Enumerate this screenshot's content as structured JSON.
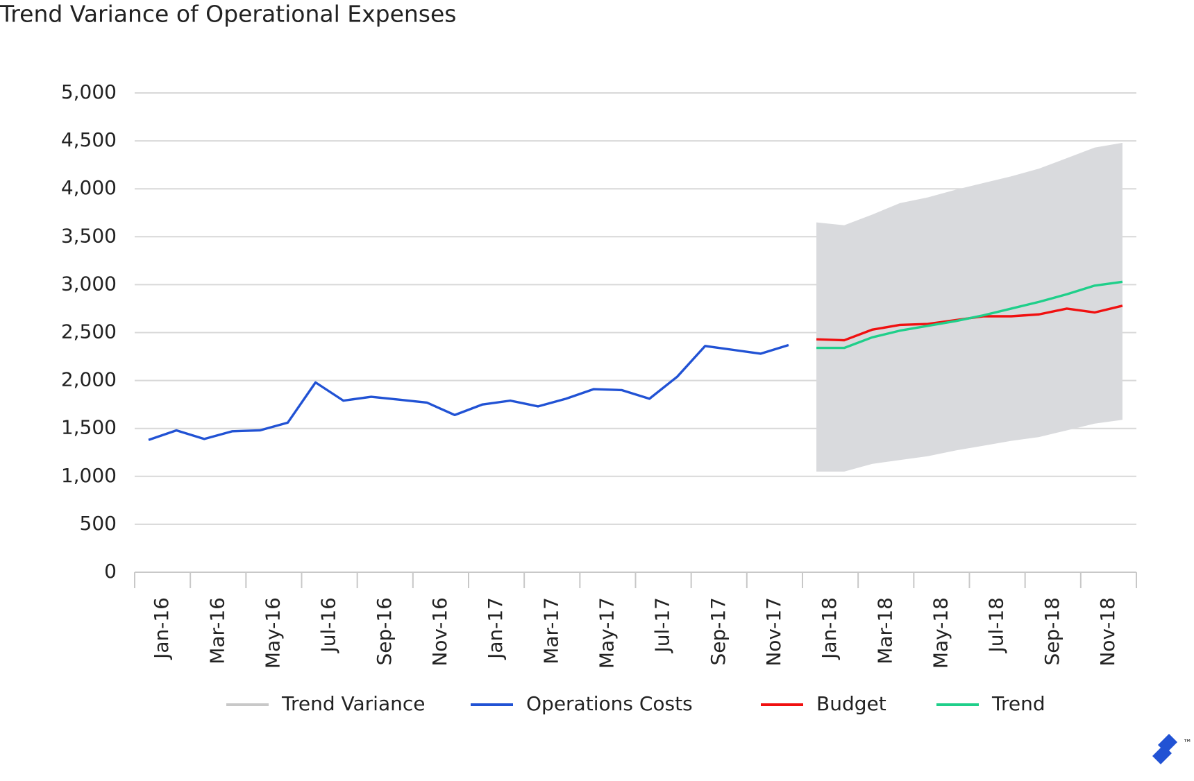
{
  "chart_data": {
    "type": "line",
    "title": "Trend Variance of Operational Expenses",
    "categories": [
      "Jan-16",
      null,
      "Mar-16",
      null,
      "May-16",
      null,
      "Jul-16",
      null,
      "Sep-16",
      null,
      "Nov-16",
      null,
      "Jan-17",
      null,
      "Mar-17",
      null,
      "May-17",
      null,
      "Jul-17",
      null,
      "Sep-17",
      null,
      "Nov-17",
      null,
      "Jan-18",
      null,
      "Mar-18",
      null,
      "May-18",
      null,
      "Jul-18",
      null,
      "Sep-18",
      null,
      "Nov-18",
      null
    ],
    "series": [
      {
        "name": "Trend Variance",
        "type": "band",
        "color": "#d9dadd",
        "upper": [
          null,
          null,
          null,
          null,
          null,
          null,
          null,
          null,
          null,
          null,
          null,
          null,
          null,
          null,
          null,
          null,
          null,
          null,
          null,
          null,
          null,
          null,
          null,
          null,
          3650,
          3620,
          3730,
          3850,
          3910,
          3990,
          4060,
          4130,
          4210,
          4320,
          4430,
          4480
        ],
        "lower": [
          null,
          null,
          null,
          null,
          null,
          null,
          null,
          null,
          null,
          null,
          null,
          null,
          null,
          null,
          null,
          null,
          null,
          null,
          null,
          null,
          null,
          null,
          null,
          null,
          1050,
          1050,
          1130,
          1170,
          1210,
          1270,
          1320,
          1370,
          1410,
          1480,
          1550,
          1590
        ]
      },
      {
        "name": "Operations Costs",
        "color": "#2152d4",
        "values": [
          1380,
          1480,
          1390,
          1470,
          1480,
          1560,
          1980,
          1790,
          1830,
          1800,
          1770,
          1640,
          1750,
          1790,
          1730,
          1810,
          1910,
          1900,
          1810,
          2040,
          2360,
          2320,
          2280,
          2370,
          null,
          null,
          null,
          null,
          null,
          null,
          null,
          null,
          null,
          null,
          null,
          null
        ]
      },
      {
        "name": "Budget",
        "color": "#f01010",
        "values": [
          null,
          null,
          null,
          null,
          null,
          null,
          null,
          null,
          null,
          null,
          null,
          null,
          null,
          null,
          null,
          null,
          null,
          null,
          null,
          null,
          null,
          null,
          null,
          null,
          2430,
          2420,
          2530,
          2580,
          2590,
          2630,
          2670,
          2670,
          2690,
          2750,
          2710,
          2780
        ]
      },
      {
        "name": "Trend",
        "color": "#1fcf8a",
        "values": [
          null,
          null,
          null,
          null,
          null,
          null,
          null,
          null,
          null,
          null,
          null,
          null,
          null,
          null,
          null,
          null,
          null,
          null,
          null,
          null,
          null,
          null,
          null,
          null,
          2340,
          2340,
          2450,
          2520,
          2570,
          2620,
          2680,
          2750,
          2820,
          2900,
          2990,
          3030
        ]
      }
    ],
    "ylim": [
      0,
      5000
    ],
    "yticks": [
      0,
      500,
      {
        "value": 1000,
        "label": "1,000"
      },
      {
        "value": 1500,
        "label": "1,500"
      },
      {
        "value": 2000,
        "label": "2,000"
      },
      {
        "value": 2500,
        "label": "2,500"
      },
      {
        "value": 3000,
        "label": "3,000"
      },
      {
        "value": 3500,
        "label": "3,500"
      },
      {
        "value": 4000,
        "label": "4,000"
      },
      {
        "value": 4500,
        "label": "4,500"
      },
      {
        "value": 5000,
        "label": "5,000"
      }
    ],
    "grid": true,
    "legend": "bottom",
    "watermark": "™"
  }
}
